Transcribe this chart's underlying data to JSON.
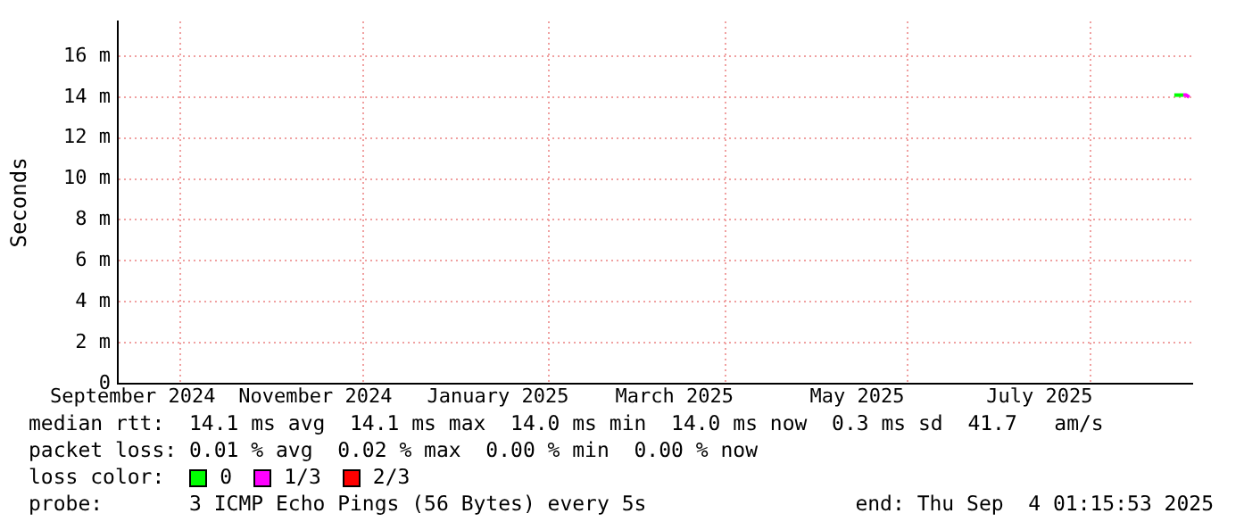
{
  "chart_data": {
    "type": "line",
    "ylabel": "Seconds",
    "legend_title": "loss color:",
    "legend": "bottom",
    "grid": true,
    "marker": "none",
    "xlim": [
      "2024-09-10",
      "2025-09-04"
    ],
    "xticks": [
      {
        "value": "2024-09-15",
        "label": "September 2024"
      },
      {
        "value": "2024-10-01",
        "label": null
      },
      {
        "value": "2024-11-15",
        "label": "November 2024"
      },
      {
        "value": "2024-12-01",
        "label": null
      },
      {
        "value": "2025-01-15",
        "label": "January 2025"
      },
      {
        "value": "2025-02-01",
        "label": null
      },
      {
        "value": "2025-03-15",
        "label": "March 2025"
      },
      {
        "value": "2025-04-01",
        "label": null
      },
      {
        "value": "2025-05-15",
        "label": "May 2025"
      },
      {
        "value": "2025-06-01",
        "label": null
      },
      {
        "value": "2025-07-15",
        "label": "July 2025"
      },
      {
        "value": "2025-08-01",
        "label": null
      }
    ],
    "ylim": [
      0,
      17.7
    ],
    "yticks": [
      0,
      {
        "value": 2,
        "label": "2 m"
      },
      {
        "value": 4,
        "label": "4 m"
      },
      {
        "value": 6,
        "label": "6 m"
      },
      {
        "value": 8,
        "label": "8 m"
      },
      {
        "value": 10,
        "label": "10 m"
      },
      {
        "value": 12,
        "label": "12 m"
      },
      {
        "value": 14,
        "label": "14 m"
      },
      {
        "value": 16,
        "label": "16 m"
      }
    ],
    "series": [
      {
        "name": "0",
        "color": "#00ff00",
        "x": [
          "2025-08-29",
          "2025-08-30",
          "2025-08-31",
          "2025-09-01"
        ],
        "values": [
          14.1,
          14.1,
          14.1,
          14.1
        ]
      },
      {
        "name": "1/3",
        "color": "#ff00ff",
        "x": [
          "2025-09-01",
          "2025-09-02",
          "2025-09-03"
        ],
        "values": [
          14.1,
          14.1,
          14.0
        ]
      },
      {
        "name": "2/3",
        "color": "#ff0000"
      }
    ],
    "annotations": [
      "median rtt:  14.1 ms avg  14.1 ms max  14.0 ms min  14.0 ms now  0.3 ms sd  41.7   am/s",
      "packet loss: 0.01 % avg  0.02 % max  0.00 % min  0.00 % now",
      "probe:       3 ICMP Echo Pings (56 Bytes) every 5s",
      "end: Thu Sep  4 01:15:53 2025"
    ]
  }
}
